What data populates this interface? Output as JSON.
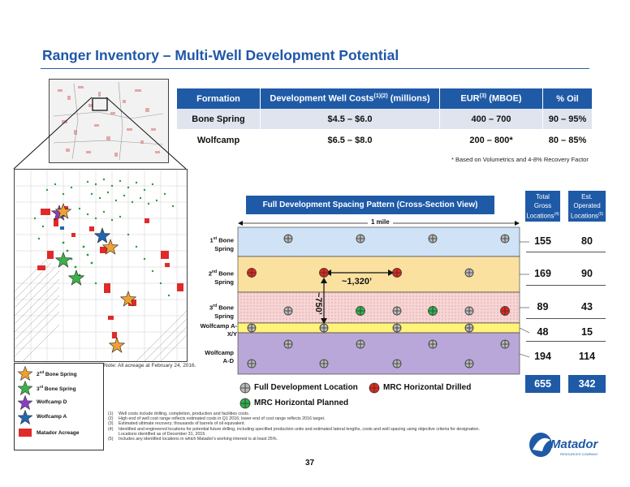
{
  "title": "Ranger Inventory – Multi-Well Development Potential",
  "table": {
    "headers": [
      "Formation",
      "Development Well Costs",
      "(1)(2)",
      " (millions)",
      "EUR",
      "(3)",
      " (MBOE)",
      "% Oil"
    ],
    "rows": [
      [
        "Bone Spring",
        "$4.5 – $6.0",
        "400 – 700",
        "90 – 95%"
      ],
      [
        "Wolfcamp",
        "$6.5 – $8.0",
        "200 – 800*",
        "80 – 85%"
      ]
    ]
  },
  "table_footnote": "* Based on Volumetrics and 4-8% Recovery Factor",
  "map_note": "Note: All acreage at February 24, 2016.",
  "map_legend": [
    {
      "label": "2nd Bone Spring",
      "sup": "nd",
      "base": "2",
      "rest": " Bone Spring",
      "color": "#f0a030"
    },
    {
      "label": "3rd Bone Spring",
      "sup": "rd",
      "base": "3",
      "rest": " Bone Spring",
      "color": "#3cb14a"
    },
    {
      "label": "Wolfcamp D",
      "sup": "",
      "base": "",
      "rest": "Wolfcamp D",
      "color": "#8a3fc6"
    },
    {
      "label": "Wolfcamp A",
      "sup": "",
      "base": "",
      "rest": "Wolfcamp A",
      "color": "#2166b0"
    }
  ],
  "acreage_label": "Matador Acreage",
  "xs": {
    "header": "Full Development Spacing Pattern (Cross-Section View)",
    "mile": "1 mile",
    "spacing": "~1,320’",
    "vertical": "~750’",
    "col1": {
      "l1": "Total",
      "l2": "Gross",
      "l3": "Locations",
      "sup": "(4)"
    },
    "col2": {
      "l1": "Est.",
      "l2": "Operated",
      "l3": "Locations",
      "sup": "(5)"
    },
    "layers": [
      {
        "sup": "st",
        "base": "1",
        "rest": " Bone",
        "l2": "Spring",
        "gross": "155",
        "operated": "80"
      },
      {
        "sup": "nd",
        "base": "2",
        "rest": " Bone",
        "l2": "Spring",
        "gross": "169",
        "operated": "90"
      },
      {
        "sup": "rd",
        "base": "3",
        "rest": " Bone",
        "l2": "Spring",
        "gross": "89",
        "operated": "43"
      },
      {
        "sup": "",
        "base": "",
        "rest": "Wolfcamp A-",
        "l2": "X/Y",
        "gross": "48",
        "operated": "15"
      },
      {
        "sup": "",
        "base": "",
        "rest": "Wolfcamp",
        "l2": "A-D",
        "gross": "194",
        "operated": "114"
      }
    ],
    "total_gross": "655",
    "total_operated": "342"
  },
  "legend": {
    "full": "Full Development Location",
    "drilled": "MRC Horizontal Drilled",
    "planned": "MRC Horizontal Planned"
  },
  "notes": [
    [
      "(1)",
      "Well costs include drilling, completion, production and facilities costs."
    ],
    [
      "(2)",
      "High end of well cost range reflects estimated costs in Q1 2016; lower end of cost range reflects 2016 target."
    ],
    [
      "(3)",
      "Estimated ultimate recovery; thousands of barrels of oil equivalent."
    ],
    [
      "(4)",
      "Identified and engineered locations for potential future drilling, including specified production units and estimated lateral lengths, costs and well spacing using objective criteria for designation."
    ],
    [
      "",
      "Locations identified as of December 31, 2015."
    ],
    [
      "(5)",
      "Includes any identified locations in which Matador's working interest is at least 25%."
    ]
  ],
  "page": "37",
  "logo": "Matador",
  "logo_sub": "RESOURCES COMPANY"
}
